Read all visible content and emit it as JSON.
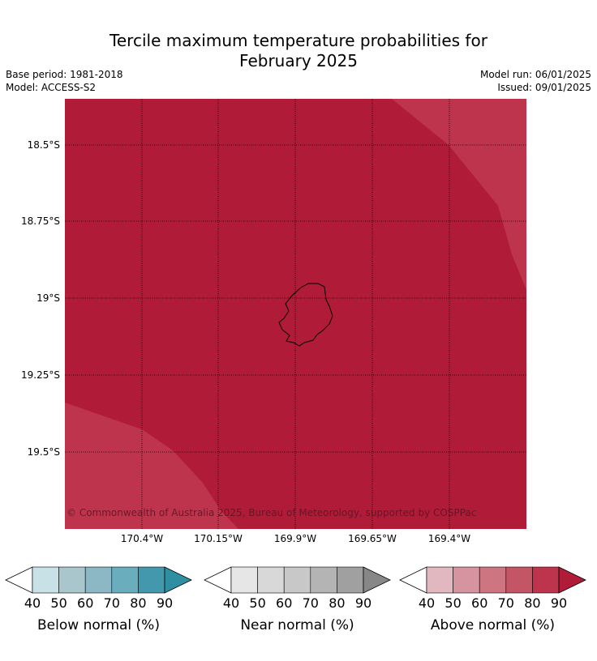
{
  "header": {
    "title_line1": "Tercile maximum temperature probabilities for",
    "title_line2": "February 2025",
    "base_period": "Base period: 1981-2018",
    "model": "Model: ACCESS-S2",
    "model_run": "Model run: 06/01/2025",
    "issued": "Issued: 09/01/2025"
  },
  "map": {
    "lat_labels": [
      "18.5°S",
      "18.75°S",
      "19°S",
      "19.25°S",
      "19.5°S"
    ],
    "lon_labels": [
      "170.4°W",
      "170.15°W",
      "169.9°W",
      "169.65°W",
      "169.4°W"
    ],
    "copyright": "© Commonwealth of Australia 2025, Bureau of Meteorology, supported by COSPPac",
    "colors": {
      "above_90": "#b01c38",
      "above_80": "#bd344c",
      "coastline": "#000000"
    }
  },
  "colorbars": [
    {
      "label": "Below normal (%)",
      "ticks": [
        "40",
        "50",
        "60",
        "70",
        "80",
        "90"
      ],
      "low_color": "#ffffff",
      "colors": [
        "#c7e1e7",
        "#a8c6cc",
        "#8bb8c4",
        "#6aaebe",
        "#4498ae"
      ],
      "high_color": "#2e8fa3"
    },
    {
      "label": "Near normal (%)",
      "ticks": [
        "40",
        "50",
        "60",
        "70",
        "80",
        "90"
      ],
      "low_color": "#ffffff",
      "colors": [
        "#e6e6e6",
        "#d8d8d8",
        "#c8c8c8",
        "#b4b4b4",
        "#a0a0a0"
      ],
      "high_color": "#878787"
    },
    {
      "label": "Above normal (%)",
      "ticks": [
        "40",
        "50",
        "60",
        "70",
        "80",
        "90"
      ],
      "low_color": "#ffffff",
      "colors": [
        "#e1b8bf",
        "#d5949f",
        "#cd7580",
        "#c45565",
        "#bd344c"
      ],
      "high_color": "#b01c38"
    }
  ]
}
